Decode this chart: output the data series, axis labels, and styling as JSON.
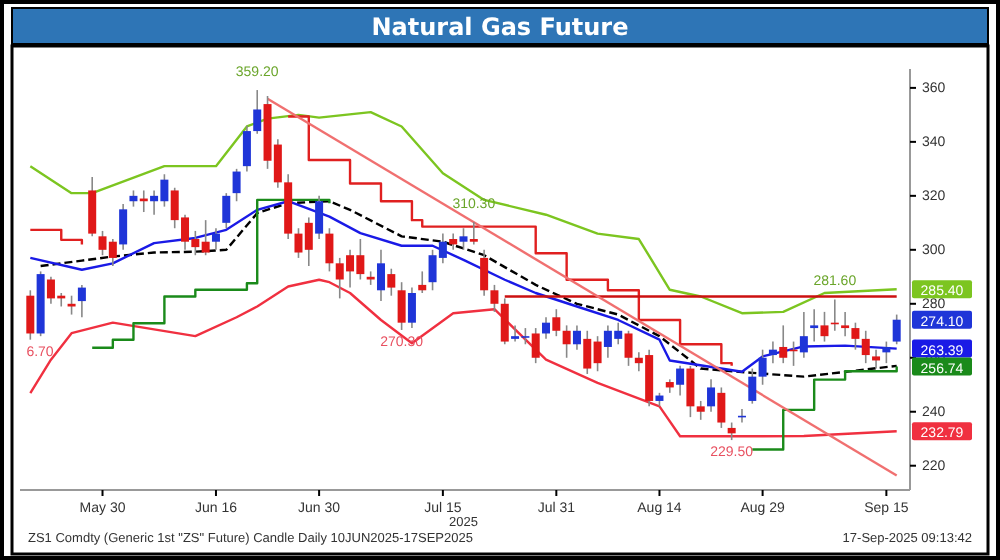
{
  "chart_data": {
    "type": "candlestick",
    "title": "Natural Gas Future",
    "categories": [
      null,
      null,
      null,
      null,
      null,
      null,
      null,
      "May 30",
      null,
      null,
      null,
      null,
      null,
      null,
      null,
      null,
      null,
      null,
      "Jun 16",
      null,
      null,
      null,
      null,
      null,
      null,
      null,
      null,
      null,
      "Jun 30",
      null,
      null,
      null,
      null,
      null,
      null,
      null,
      null,
      null,
      null,
      null,
      "Jul 15",
      null,
      null,
      null,
      null,
      null,
      null,
      null,
      null,
      null,
      null,
      "Jul 31",
      null,
      null,
      null,
      null,
      null,
      null,
      null,
      null,
      null,
      "Aug 14",
      null,
      null,
      null,
      null,
      null,
      null,
      null,
      null,
      null,
      "Aug 29",
      null,
      null,
      null,
      null,
      null,
      null,
      null,
      null,
      null,
      null,
      null,
      "Sep 15",
      null
    ],
    "ohlc": [
      [
        283,
        285,
        266.7,
        269
      ],
      [
        269,
        292,
        268,
        291
      ],
      [
        289,
        290,
        280,
        282
      ],
      [
        283,
        284,
        279,
        282
      ],
      [
        280,
        283,
        276,
        279
      ],
      [
        281,
        287,
        275,
        286
      ],
      [
        322,
        327,
        305,
        306
      ],
      [
        305,
        307,
        298,
        300
      ],
      [
        303,
        304,
        294,
        297
      ],
      [
        302,
        317,
        300,
        315
      ],
      [
        318,
        322,
        316,
        320
      ],
      [
        319,
        322,
        314,
        318
      ],
      [
        318,
        322,
        313,
        320
      ],
      [
        318,
        328,
        316,
        326
      ],
      [
        322,
        323,
        308,
        311
      ],
      [
        312,
        313,
        300,
        303
      ],
      [
        304,
        307,
        298,
        301
      ],
      [
        303,
        311,
        298,
        299
      ],
      [
        303,
        308,
        300,
        306
      ],
      [
        310,
        321,
        308,
        320
      ],
      [
        321,
        330,
        318,
        329
      ],
      [
        331,
        346,
        329,
        344
      ],
      [
        344,
        359.2,
        343,
        352
      ],
      [
        354,
        357,
        330,
        333
      ],
      [
        339,
        341,
        323,
        325
      ],
      [
        325,
        328,
        304,
        306
      ],
      [
        306,
        308,
        297,
        299
      ],
      [
        310,
        312,
        294,
        300
      ],
      [
        306,
        320,
        304,
        318
      ],
      [
        306,
        308,
        292,
        295
      ],
      [
        295,
        297,
        282,
        289
      ],
      [
        298,
        300,
        286,
        292
      ],
      [
        298,
        304,
        289,
        291
      ],
      [
        290,
        292,
        287,
        289
      ],
      [
        285,
        300,
        281,
        295
      ],
      [
        291,
        293,
        283,
        286
      ],
      [
        285,
        288,
        270.3,
        273
      ],
      [
        273,
        286,
        271,
        284
      ],
      [
        287,
        292,
        284,
        285
      ],
      [
        288,
        300,
        285,
        298
      ],
      [
        297,
        306,
        295,
        303
      ],
      [
        304,
        306,
        300,
        302
      ],
      [
        303,
        308,
        300,
        305
      ],
      [
        304,
        310.3,
        302,
        303
      ],
      [
        297,
        300,
        283,
        285
      ],
      [
        285,
        287,
        277,
        280
      ],
      [
        280,
        282,
        265,
        266
      ],
      [
        267,
        272,
        266,
        268
      ],
      [
        267.5,
        271,
        265,
        268
      ],
      [
        269,
        271,
        258,
        260
      ],
      [
        269,
        275,
        267,
        273
      ],
      [
        275,
        278,
        268,
        270
      ],
      [
        270,
        272,
        260,
        265
      ],
      [
        265,
        272,
        263,
        270
      ],
      [
        267,
        270,
        254,
        256
      ],
      [
        266,
        268,
        255,
        258
      ],
      [
        264,
        272,
        260,
        270
      ],
      [
        267,
        273,
        265,
        270
      ],
      [
        269,
        270,
        257,
        260
      ],
      [
        260,
        262,
        255,
        258
      ],
      [
        261,
        263,
        242,
        244
      ],
      [
        244,
        247,
        242,
        246
      ],
      [
        251,
        252,
        247,
        249
      ],
      [
        250,
        257,
        246,
        256
      ],
      [
        256,
        257,
        238,
        242
      ],
      [
        242,
        244,
        237,
        240
      ],
      [
        242,
        252,
        240,
        249
      ],
      [
        247,
        249,
        234,
        236
      ],
      [
        234,
        236,
        229.5,
        232
      ],
      [
        238,
        241,
        236,
        238.5
      ],
      [
        244,
        256,
        243,
        253
      ],
      [
        253,
        263,
        250,
        260
      ],
      [
        261,
        266,
        258,
        263
      ],
      [
        264,
        272,
        258,
        260
      ],
      [
        263,
        266,
        257,
        262.5
      ],
      [
        262,
        277,
        260,
        268
      ],
      [
        271,
        278,
        266,
        272
      ],
      [
        272,
        277,
        266,
        268
      ],
      [
        273,
        281.6,
        270,
        272.5
      ],
      [
        272,
        277,
        268,
        271
      ],
      [
        271,
        273,
        263,
        267
      ],
      [
        267,
        270,
        258,
        261
      ],
      [
        260.5,
        263,
        256,
        259
      ],
      [
        262,
        266,
        258,
        264
      ],
      [
        266,
        276,
        265,
        274.1
      ]
    ],
    "value_labels": [
      null,
      null,
      null,
      null,
      null,
      null,
      null,
      null,
      null,
      null,
      null,
      null,
      null,
      null,
      null,
      null,
      null,
      null,
      null,
      null,
      null,
      null,
      null,
      null,
      null,
      null,
      null,
      null,
      null,
      null,
      null,
      null,
      null,
      null,
      null,
      null,
      null,
      null,
      null,
      null,
      null,
      null,
      null,
      null,
      null,
      null,
      null,
      null,
      null,
      null,
      null,
      null,
      null,
      null,
      null,
      null,
      null,
      null,
      null,
      null,
      null,
      null,
      null,
      null,
      null,
      null,
      null,
      null,
      null,
      null,
      null,
      null,
      null,
      null,
      null,
      null,
      null,
      null,
      null,
      null,
      null,
      null,
      null,
      null,
      "274.10"
    ],
    "colors": [
      "#e01818",
      "#1f35d8",
      "#e01818",
      "#e01818",
      "#e01818",
      "#1f35d8",
      "#e01818",
      "#e01818",
      "#e01818",
      "#1f35d8",
      "#1f35d8",
      "#e01818",
      "#1f35d8",
      "#1f35d8",
      "#e01818",
      "#e01818",
      "#e01818",
      "#e01818",
      "#1f35d8",
      "#1f35d8",
      "#1f35d8",
      "#1f35d8",
      "#1f35d8",
      "#e01818",
      "#e01818",
      "#e01818",
      "#e01818",
      "#e01818",
      "#1f35d8",
      "#e01818",
      "#e01818",
      "#e01818",
      "#e01818",
      "#e01818",
      "#1f35d8",
      "#e01818",
      "#e01818",
      "#1f35d8",
      "#e01818",
      "#1f35d8",
      "#1f35d8",
      "#e01818",
      "#1f35d8",
      "#e01818",
      "#e01818",
      "#e01818",
      "#e01818",
      "#1f35d8",
      "#1f35d8",
      "#e01818",
      "#1f35d8",
      "#e01818",
      "#e01818",
      "#1f35d8",
      "#e01818",
      "#e01818",
      "#1f35d8",
      "#1f35d8",
      "#e01818",
      "#e01818",
      "#e01818",
      "#1f35d8",
      "#e01818",
      "#1f35d8",
      "#e01818",
      "#e01818",
      "#1f35d8",
      "#e01818",
      "#e01818",
      "#1f35d8",
      "#1f35d8",
      "#1f35d8",
      "#1f35d8",
      "#e01818",
      "#e01818",
      "#1f35d8",
      "#1f35d8",
      "#e01818",
      "#e01818",
      "#e01818",
      "#e01818",
      "#e01818",
      "#e01818",
      "#1f35d8",
      "#1f35d8"
    ],
    "series": [
      {
        "type": "line",
        "color": "#7cc520",
        "values": [
          331,
          null,
          null,
          null,
          321,
          null,
          321,
          null,
          null,
          null,
          null,
          null,
          null,
          331,
          null,
          null,
          null,
          null,
          331,
          null,
          null,
          345.7,
          null,
          348.6,
          null,
          null,
          350,
          null,
          349,
          null,
          null,
          null,
          null,
          351,
          null,
          null,
          345.7,
          null,
          null,
          null,
          328.4,
          null,
          null,
          null,
          318.5,
          null,
          null,
          null,
          null,
          null,
          313,
          null,
          null,
          null,
          null,
          306,
          null,
          null,
          null,
          304,
          null,
          null,
          285.2,
          null,
          null,
          282.7,
          null,
          null,
          null,
          276.5,
          null,
          null,
          null,
          277,
          null,
          null,
          null,
          284,
          null,
          null,
          null,
          null,
          null,
          null,
          285.4
        ],
        "value_labels": [
          null,
          null,
          null,
          null,
          null,
          null,
          null,
          null,
          null,
          null,
          null,
          null,
          null,
          null,
          null,
          null,
          null,
          null,
          null,
          null,
          null,
          null,
          null,
          null,
          null,
          null,
          null,
          null,
          null,
          null,
          null,
          null,
          null,
          null,
          null,
          null,
          null,
          null,
          null,
          null,
          null,
          null,
          null,
          null,
          null,
          null,
          null,
          null,
          null,
          null,
          null,
          null,
          null,
          null,
          null,
          null,
          null,
          null,
          null,
          null,
          null,
          null,
          null,
          null,
          null,
          null,
          null,
          null,
          null,
          null,
          null,
          null,
          null,
          null,
          null,
          null,
          null,
          null,
          null,
          null,
          null,
          null,
          null,
          null,
          "285.40"
        ]
      },
      {
        "type": "line",
        "color": "#f03040",
        "values": [
          246.9,
          null,
          259.3,
          null,
          269.1,
          null,
          null,
          null,
          273,
          null,
          null,
          null,
          null,
          null,
          null,
          null,
          268,
          null,
          null,
          null,
          275,
          null,
          279,
          null,
          null,
          286.4,
          null,
          null,
          288.9,
          288,
          null,
          284,
          null,
          null,
          274,
          null,
          null,
          265.4,
          null,
          null,
          null,
          276.5,
          null,
          null,
          null,
          278,
          null,
          null,
          null,
          null,
          259.3,
          null,
          null,
          null,
          null,
          250.7,
          null,
          null,
          null,
          null,
          null,
          242,
          null,
          230.9,
          null,
          null,
          null,
          null,
          null,
          230.9,
          null,
          null,
          null,
          null,
          null,
          231,
          null,
          null,
          null,
          null,
          null,
          null,
          null,
          null,
          232.79
        ],
        "value_labels": [
          null,
          null,
          null,
          null,
          null,
          null,
          null,
          null,
          null,
          null,
          null,
          null,
          null,
          null,
          null,
          null,
          null,
          null,
          null,
          null,
          null,
          null,
          null,
          null,
          null,
          null,
          null,
          null,
          null,
          null,
          null,
          null,
          null,
          null,
          null,
          null,
          null,
          null,
          null,
          null,
          null,
          null,
          null,
          null,
          null,
          null,
          null,
          null,
          null,
          null,
          null,
          null,
          null,
          null,
          null,
          null,
          null,
          null,
          null,
          null,
          null,
          null,
          null,
          null,
          null,
          null,
          null,
          null,
          null,
          null,
          null,
          null,
          null,
          null,
          null,
          null,
          null,
          null,
          null,
          null,
          null,
          null,
          null,
          null,
          "232.79"
        ]
      },
      {
        "type": "line",
        "color": "#000000",
        "line_style": "dashed",
        "values": [
          null,
          294,
          null,
          null,
          null,
          296,
          null,
          null,
          297.5,
          null,
          null,
          null,
          299,
          null,
          null,
          null,
          299.3,
          null,
          null,
          300,
          null,
          null,
          313.6,
          null,
          null,
          317.3,
          null,
          null,
          null,
          318,
          null,
          314.8,
          null,
          null,
          null,
          null,
          305,
          null,
          null,
          null,
          303,
          null,
          null,
          null,
          298,
          null,
          null,
          null,
          null,
          287,
          null,
          null,
          null,
          280,
          null,
          null,
          null,
          276,
          null,
          null,
          null,
          268,
          null,
          null,
          null,
          256,
          null,
          null,
          null,
          null,
          254.4,
          null,
          null,
          null,
          null,
          253,
          null,
          null,
          null,
          null,
          null,
          null,
          null,
          null,
          257
        ]
      },
      {
        "type": "line",
        "color": "#1a1ae6",
        "values": [
          297,
          null,
          null,
          null,
          null,
          292.6,
          null,
          null,
          295,
          null,
          null,
          null,
          302.5,
          null,
          null,
          null,
          304.4,
          null,
          null,
          307.4,
          null,
          null,
          314.8,
          null,
          null,
          318,
          null,
          null,
          null,
          312.3,
          null,
          null,
          306.2,
          null,
          null,
          null,
          301.5,
          null,
          null,
          301.5,
          null,
          null,
          296.3,
          null,
          null,
          null,
          288.9,
          null,
          null,
          284,
          null,
          null,
          null,
          279,
          null,
          null,
          null,
          274,
          null,
          null,
          null,
          266.7,
          259,
          null,
          null,
          null,
          null,
          null,
          null,
          254.8,
          null,
          260.5,
          null,
          null,
          null,
          264.2,
          null,
          null,
          null,
          264.5,
          null,
          null,
          null,
          null,
          263.39
        ],
        "value_labels": [
          null,
          null,
          null,
          null,
          null,
          null,
          null,
          null,
          null,
          null,
          null,
          null,
          null,
          null,
          null,
          null,
          null,
          null,
          null,
          null,
          null,
          null,
          null,
          null,
          null,
          null,
          null,
          null,
          null,
          null,
          null,
          null,
          null,
          null,
          null,
          null,
          null,
          null,
          null,
          null,
          null,
          null,
          null,
          null,
          null,
          null,
          null,
          null,
          null,
          null,
          null,
          null,
          null,
          null,
          null,
          null,
          null,
          null,
          null,
          null,
          null,
          null,
          null,
          null,
          null,
          null,
          null,
          null,
          null,
          null,
          null,
          null,
          null,
          null,
          null,
          null,
          null,
          null,
          null,
          null,
          null,
          null,
          null,
          null,
          "263.39"
        ]
      },
      {
        "type": "step",
        "color": "#1a8a1a",
        "values": [
          null,
          null,
          null,
          null,
          null,
          null,
          263.7,
          null,
          266.7,
          null,
          272.8,
          null,
          null,
          282.7,
          null,
          null,
          285.2,
          null,
          null,
          null,
          null,
          287.6,
          318.5,
          null,
          null,
          null,
          null,
          null,
          null,
          317.3,
          null,
          null,
          null,
          null,
          null,
          null,
          null,
          null,
          null,
          null,
          null,
          null,
          null,
          null,
          null,
          null,
          null,
          null,
          null,
          null,
          null,
          null,
          null,
          null,
          null,
          null,
          null,
          null,
          null,
          null,
          null,
          null,
          null,
          null,
          null,
          null,
          null,
          null,
          null,
          null,
          null,
          null,
          null,
          null,
          null,
          null,
          null,
          null,
          null,
          null,
          null,
          null,
          null,
          null,
          null
        ]
      },
      {
        "type": "step",
        "color": "#1a8a1a",
        "values": [
          null,
          null,
          null,
          null,
          null,
          null,
          null,
          null,
          null,
          null,
          null,
          null,
          null,
          null,
          null,
          null,
          null,
          null,
          null,
          null,
          null,
          null,
          null,
          null,
          null,
          null,
          null,
          null,
          null,
          null,
          null,
          null,
          null,
          null,
          null,
          null,
          null,
          null,
          null,
          null,
          null,
          null,
          null,
          null,
          null,
          null,
          null,
          null,
          null,
          null,
          null,
          null,
          null,
          null,
          null,
          null,
          null,
          null,
          null,
          null,
          null,
          null,
          null,
          null,
          null,
          null,
          null,
          null,
          null,
          null,
          226,
          null,
          null,
          240.7,
          null,
          null,
          251.9,
          null,
          null,
          255,
          null,
          null,
          null,
          null,
          256.74
        ],
        "value_labels": [
          null,
          null,
          null,
          null,
          null,
          null,
          null,
          null,
          null,
          null,
          null,
          null,
          null,
          null,
          null,
          null,
          null,
          null,
          null,
          null,
          null,
          null,
          null,
          null,
          null,
          null,
          null,
          null,
          null,
          null,
          null,
          null,
          null,
          null,
          null,
          null,
          null,
          null,
          null,
          null,
          null,
          null,
          null,
          null,
          null,
          null,
          null,
          null,
          null,
          null,
          null,
          null,
          null,
          null,
          null,
          null,
          null,
          null,
          null,
          null,
          null,
          null,
          null,
          null,
          null,
          null,
          null,
          null,
          null,
          null,
          null,
          null,
          null,
          null,
          null,
          null,
          null,
          null,
          null,
          null,
          null,
          null,
          null,
          null,
          "256.74"
        ]
      },
      {
        "type": "step",
        "color": "#e02020",
        "values": [
          307.4,
          null,
          null,
          303.7,
          null,
          302,
          null,
          null,
          null,
          null,
          null,
          null,
          null,
          null,
          null,
          null,
          null,
          null,
          null,
          null,
          null,
          null,
          null,
          null,
          null,
          null,
          null,
          null,
          null,
          null,
          null,
          null,
          null,
          null,
          null,
          null,
          null,
          null,
          null,
          null,
          null,
          null,
          null,
          null,
          null,
          null,
          null,
          null,
          null,
          null,
          null,
          null,
          null,
          null,
          null,
          null,
          null,
          null,
          null,
          null,
          null,
          null,
          null,
          null,
          null,
          null,
          null,
          null,
          null,
          null,
          null,
          null,
          null,
          null,
          null,
          null,
          null,
          null,
          null,
          null,
          null,
          null,
          null,
          null,
          null
        ]
      },
      {
        "type": "step",
        "color": "#e02020",
        "values": [
          null,
          null,
          null,
          null,
          null,
          null,
          null,
          null,
          null,
          null,
          null,
          null,
          null,
          null,
          null,
          null,
          null,
          null,
          null,
          null,
          null,
          null,
          null,
          null,
          null,
          349.4,
          null,
          333.3,
          null,
          null,
          333.3,
          324.6,
          null,
          null,
          318,
          null,
          null,
          311,
          308.6,
          null,
          null,
          null,
          null,
          null,
          null,
          null,
          308.6,
          null,
          null,
          298.7,
          null,
          null,
          288.9,
          null,
          null,
          null,
          285,
          null,
          null,
          274,
          null,
          null,
          null,
          265,
          null,
          null,
          null,
          258,
          257,
          null,
          null,
          null,
          null,
          null,
          null,
          null,
          null,
          null,
          null,
          null,
          null,
          null,
          null,
          null,
          null
        ]
      },
      {
        "type": "line",
        "color": "#cc1010",
        "values": [
          null,
          null,
          null,
          null,
          null,
          null,
          null,
          null,
          null,
          null,
          null,
          null,
          null,
          null,
          null,
          null,
          null,
          null,
          null,
          null,
          null,
          null,
          null,
          null,
          null,
          null,
          null,
          null,
          null,
          null,
          null,
          null,
          null,
          null,
          null,
          null,
          null,
          null,
          null,
          null,
          null,
          null,
          null,
          null,
          null,
          null,
          282.7,
          null,
          null,
          null,
          null,
          null,
          null,
          null,
          null,
          null,
          null,
          null,
          null,
          null,
          null,
          null,
          null,
          null,
          null,
          null,
          null,
          null,
          null,
          null,
          null,
          null,
          null,
          null,
          null,
          null,
          null,
          null,
          null,
          null,
          null,
          null,
          null,
          null,
          282.7
        ]
      },
      {
        "type": "line",
        "color": "#f07070",
        "values": [
          null,
          null,
          null,
          null,
          null,
          null,
          null,
          null,
          null,
          null,
          null,
          null,
          null,
          null,
          null,
          null,
          null,
          null,
          null,
          null,
          null,
          null,
          null,
          356,
          null,
          null,
          null,
          null,
          null,
          null,
          null,
          null,
          null,
          null,
          null,
          null,
          null,
          null,
          null,
          null,
          null,
          null,
          null,
          null,
          null,
          null,
          null,
          null,
          null,
          null,
          null,
          null,
          null,
          null,
          null,
          null,
          null,
          null,
          null,
          null,
          null,
          null,
          null,
          null,
          null,
          null,
          null,
          null,
          null,
          null,
          null,
          null,
          null,
          null,
          null,
          null,
          null,
          null,
          null,
          null,
          null,
          null,
          null,
          null,
          216.4
        ]
      }
    ],
    "ylim": [
      211,
      367
    ],
    "yticks": [
      220,
      240,
      260,
      280,
      300,
      320,
      340,
      360
    ],
    "grid": false,
    "legend": false,
    "annotations": [
      "2025",
      "ZS1 Comdty (Generic 1st \"ZS\" Future) Candle Daily 10JUN2025-17SEP2025",
      "17-Sep-2025 09:13:42",
      {
        "text": "6.70",
        "y": 266.7
      },
      {
        "text": "359.20",
        "y": 359.2
      },
      {
        "text": "270.30",
        "y": 270.3
      },
      {
        "text": "310.30",
        "y": 310.3
      },
      {
        "text": "229.50",
        "y": 229.5
      },
      {
        "text": "281.60",
        "y": 281.6
      }
    ]
  }
}
